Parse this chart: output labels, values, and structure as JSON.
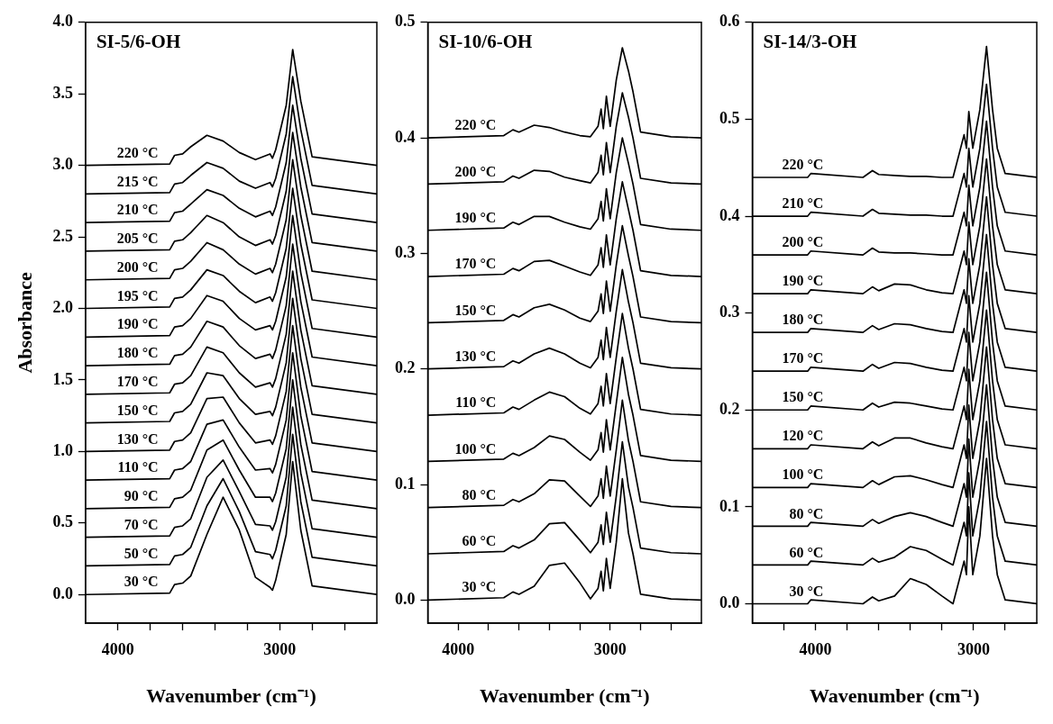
{
  "chart_data": [
    {
      "type": "line",
      "title": "SI-5/6-OH",
      "xlabel": "Wavenumber (cm⁻¹)",
      "ylabel": "Absorbance",
      "marker": "none",
      "line_style": "solid",
      "x": [
        4200,
        3680,
        3650,
        3600,
        3550,
        3450,
        3350,
        3250,
        3150,
        3060,
        3045,
        3025,
        2960,
        2920,
        2870,
        2800,
        2400
      ],
      "xlim": [
        4200,
        2400
      ],
      "xticks": [
        {
          "value": 4000,
          "label": "4000"
        },
        {
          "value": 3800,
          "label": null
        },
        {
          "value": 3600,
          "label": null
        },
        {
          "value": 3400,
          "label": null
        },
        {
          "value": 3200,
          "label": null
        },
        {
          "value": 3000,
          "label": "3000"
        },
        {
          "value": 2800,
          "label": null
        },
        {
          "value": 2600,
          "label": null
        }
      ],
      "ylim": [
        -0.2,
        4.0
      ],
      "yticks": [
        {
          "value": 0,
          "label": "0.0"
        },
        0.5,
        {
          "value": 1,
          "label": "1.0"
        },
        1.5,
        {
          "value": 2,
          "label": "2.0"
        },
        2.5,
        {
          "value": 3,
          "label": "3.0"
        },
        3.5,
        {
          "value": 4,
          "label": "4.0"
        }
      ],
      "series": [
        {
          "name": "30 °C",
          "color": "#000000",
          "values": [
            0,
            0.01,
            0.07,
            0.08,
            0.13,
            0.42,
            0.68,
            0.45,
            0.12,
            0.05,
            0.03,
            0.1,
            0.42,
            0.93,
            0.45,
            0.06,
            0
          ]
        },
        {
          "name": "50 °C",
          "color": "#000000",
          "values": [
            0.2,
            0.21,
            0.27,
            0.28,
            0.33,
            0.62,
            0.81,
            0.58,
            0.3,
            0.28,
            0.25,
            0.31,
            0.62,
            1.12,
            0.65,
            0.26,
            0.2
          ]
        },
        {
          "name": "70 °C",
          "color": "#000000",
          "values": [
            0.4,
            0.41,
            0.47,
            0.48,
            0.53,
            0.82,
            0.94,
            0.72,
            0.49,
            0.48,
            0.45,
            0.51,
            0.82,
            1.31,
            0.85,
            0.46,
            0.4
          ]
        },
        {
          "name": "90 °C",
          "color": "#000000",
          "values": [
            0.6,
            0.61,
            0.67,
            0.68,
            0.73,
            1.01,
            1.08,
            0.87,
            0.68,
            0.68,
            0.65,
            0.71,
            1.02,
            1.5,
            1.05,
            0.66,
            0.6
          ]
        },
        {
          "name": "110 °C",
          "color": "#000000",
          "values": [
            0.8,
            0.81,
            0.87,
            0.88,
            0.93,
            1.19,
            1.22,
            1.03,
            0.87,
            0.88,
            0.85,
            0.91,
            1.22,
            1.69,
            1.25,
            0.86,
            0.8
          ]
        },
        {
          "name": "130 °C",
          "color": "#000000",
          "values": [
            1,
            1.01,
            1.07,
            1.08,
            1.13,
            1.37,
            1.38,
            1.2,
            1.06,
            1.08,
            1.05,
            1.11,
            1.42,
            1.88,
            1.45,
            1.06,
            1
          ]
        },
        {
          "name": "150 °C",
          "color": "#000000",
          "values": [
            1.2,
            1.21,
            1.27,
            1.28,
            1.33,
            1.55,
            1.53,
            1.37,
            1.26,
            1.28,
            1.25,
            1.31,
            1.62,
            2.07,
            1.65,
            1.26,
            1.2
          ]
        },
        {
          "name": "170 °C",
          "color": "#000000",
          "values": [
            1.4,
            1.41,
            1.47,
            1.48,
            1.53,
            1.73,
            1.69,
            1.55,
            1.45,
            1.48,
            1.45,
            1.51,
            1.82,
            2.26,
            1.85,
            1.46,
            1.4
          ]
        },
        {
          "name": "180 °C",
          "color": "#000000",
          "values": [
            1.6,
            1.61,
            1.67,
            1.68,
            1.73,
            1.91,
            1.87,
            1.74,
            1.65,
            1.68,
            1.65,
            1.71,
            2.02,
            2.45,
            2.05,
            1.66,
            1.6
          ]
        },
        {
          "name": "190 °C",
          "color": "#000000",
          "values": [
            1.8,
            1.81,
            1.87,
            1.88,
            1.93,
            2.09,
            2.05,
            1.93,
            1.85,
            1.88,
            1.85,
            1.91,
            2.22,
            2.65,
            2.25,
            1.86,
            1.8
          ]
        },
        {
          "name": "195 °C",
          "color": "#000000",
          "values": [
            2,
            2.01,
            2.07,
            2.08,
            2.13,
            2.27,
            2.23,
            2.12,
            2.04,
            2.08,
            2.05,
            2.11,
            2.42,
            2.84,
            2.45,
            2.06,
            2
          ]
        },
        {
          "name": "200 °C",
          "color": "#000000",
          "values": [
            2.2,
            2.21,
            2.27,
            2.28,
            2.33,
            2.46,
            2.41,
            2.31,
            2.24,
            2.28,
            2.25,
            2.31,
            2.62,
            3.04,
            2.65,
            2.26,
            2.2
          ]
        },
        {
          "name": "205 °C",
          "color": "#000000",
          "values": [
            2.4,
            2.41,
            2.47,
            2.48,
            2.53,
            2.65,
            2.6,
            2.5,
            2.44,
            2.48,
            2.45,
            2.51,
            2.82,
            3.23,
            2.85,
            2.46,
            2.4
          ]
        },
        {
          "name": "210 °C",
          "color": "#000000",
          "values": [
            2.6,
            2.61,
            2.67,
            2.68,
            2.73,
            2.83,
            2.79,
            2.7,
            2.64,
            2.68,
            2.65,
            2.71,
            3.02,
            3.42,
            3.05,
            2.66,
            2.6
          ]
        },
        {
          "name": "215 °C",
          "color": "#000000",
          "values": [
            2.8,
            2.81,
            2.87,
            2.88,
            2.93,
            3.02,
            2.98,
            2.89,
            2.84,
            2.88,
            2.85,
            2.91,
            3.22,
            3.62,
            3.25,
            2.86,
            2.8
          ]
        },
        {
          "name": "220 °C",
          "color": "#000000",
          "values": [
            3,
            3.01,
            3.07,
            3.08,
            3.13,
            3.21,
            3.17,
            3.09,
            3.04,
            3.08,
            3.05,
            3.11,
            3.42,
            3.81,
            3.45,
            3.06,
            3
          ]
        }
      ]
    },
    {
      "type": "line",
      "title": "SI-10/6-OH",
      "xlabel": "Wavenumber (cm⁻¹)",
      "marker": "none",
      "line_style": "solid",
      "x": [
        4200,
        3700,
        3640,
        3600,
        3500,
        3400,
        3300,
        3200,
        3130,
        3080,
        3060,
        3045,
        3025,
        3000,
        2960,
        2920,
        2880,
        2850,
        2800,
        2600,
        2400
      ],
      "xlim": [
        4200,
        2400
      ],
      "xticks": [
        {
          "value": 4000,
          "label": "4000"
        },
        {
          "value": 3800,
          "label": null
        },
        {
          "value": 3600,
          "label": null
        },
        {
          "value": 3400,
          "label": null
        },
        {
          "value": 3200,
          "label": null
        },
        {
          "value": 3000,
          "label": "3000"
        },
        {
          "value": 2800,
          "label": null
        },
        {
          "value": 2600,
          "label": null
        }
      ],
      "ylim": [
        -0.02,
        0.5
      ],
      "yticks": [
        {
          "value": 0,
          "label": "0.0"
        },
        0.1,
        0.2,
        0.3,
        0.4,
        0.5
      ],
      "series": [
        {
          "name": "30 °C",
          "color": "#000000",
          "values": [
            0,
            0.002,
            0.007,
            0.005,
            0.012,
            0.03,
            0.032,
            0.015,
            0.001,
            0.01,
            0.025,
            0.008,
            0.036,
            0.01,
            0.05,
            0.105,
            0.058,
            0.04,
            0.005,
            0.001,
            0
          ]
        },
        {
          "name": "60 °C",
          "color": "#000000",
          "values": [
            0.04,
            0.042,
            0.047,
            0.045,
            0.052,
            0.066,
            0.067,
            0.052,
            0.041,
            0.05,
            0.065,
            0.048,
            0.076,
            0.05,
            0.09,
            0.137,
            0.098,
            0.08,
            0.045,
            0.041,
            0.04
          ]
        },
        {
          "name": "80 °C",
          "color": "#000000",
          "values": [
            0.08,
            0.082,
            0.087,
            0.085,
            0.092,
            0.104,
            0.103,
            0.09,
            0.081,
            0.09,
            0.105,
            0.088,
            0.116,
            0.09,
            0.13,
            0.173,
            0.138,
            0.12,
            0.085,
            0.081,
            0.08
          ]
        },
        {
          "name": "100 °C",
          "color": "#000000",
          "values": [
            0.12,
            0.122,
            0.127,
            0.125,
            0.132,
            0.142,
            0.139,
            0.128,
            0.121,
            0.13,
            0.145,
            0.128,
            0.156,
            0.13,
            0.17,
            0.21,
            0.178,
            0.16,
            0.125,
            0.121,
            0.12
          ]
        },
        {
          "name": "110 °C",
          "color": "#000000",
          "values": [
            0.16,
            0.162,
            0.167,
            0.165,
            0.173,
            0.18,
            0.176,
            0.166,
            0.161,
            0.17,
            0.185,
            0.168,
            0.196,
            0.17,
            0.21,
            0.248,
            0.218,
            0.2,
            0.165,
            0.161,
            0.16
          ]
        },
        {
          "name": "130 °C",
          "color": "#000000",
          "values": [
            0.2,
            0.202,
            0.207,
            0.205,
            0.213,
            0.218,
            0.213,
            0.205,
            0.201,
            0.21,
            0.225,
            0.208,
            0.236,
            0.21,
            0.25,
            0.286,
            0.258,
            0.24,
            0.205,
            0.201,
            0.2
          ]
        },
        {
          "name": "150 °C",
          "color": "#000000",
          "values": [
            0.24,
            0.242,
            0.247,
            0.245,
            0.253,
            0.256,
            0.251,
            0.244,
            0.241,
            0.25,
            0.265,
            0.248,
            0.276,
            0.25,
            0.29,
            0.324,
            0.298,
            0.28,
            0.245,
            0.241,
            0.24
          ]
        },
        {
          "name": "170 °C",
          "color": "#000000",
          "values": [
            0.28,
            0.282,
            0.287,
            0.285,
            0.293,
            0.294,
            0.289,
            0.284,
            0.281,
            0.29,
            0.305,
            0.288,
            0.316,
            0.29,
            0.33,
            0.362,
            0.338,
            0.32,
            0.285,
            0.281,
            0.28
          ]
        },
        {
          "name": "190 °C",
          "color": "#000000",
          "values": [
            0.32,
            0.322,
            0.327,
            0.325,
            0.332,
            0.332,
            0.327,
            0.323,
            0.321,
            0.33,
            0.345,
            0.328,
            0.356,
            0.33,
            0.37,
            0.4,
            0.378,
            0.36,
            0.325,
            0.321,
            0.32
          ]
        },
        {
          "name": "200 °C",
          "color": "#000000",
          "values": [
            0.36,
            0.362,
            0.367,
            0.365,
            0.372,
            0.371,
            0.366,
            0.363,
            0.361,
            0.37,
            0.385,
            0.368,
            0.396,
            0.37,
            0.41,
            0.439,
            0.418,
            0.4,
            0.365,
            0.361,
            0.36
          ]
        },
        {
          "name": "220 °C",
          "color": "#000000",
          "values": [
            0.4,
            0.402,
            0.407,
            0.405,
            0.411,
            0.409,
            0.405,
            0.402,
            0.401,
            0.41,
            0.425,
            0.408,
            0.436,
            0.41,
            0.45,
            0.478,
            0.458,
            0.44,
            0.405,
            0.401,
            0.4
          ]
        }
      ]
    },
    {
      "type": "line",
      "title": "SI-14/3-OH",
      "xlabel": "Wavenumber (cm⁻¹)",
      "marker": "none",
      "line_style": "solid",
      "x": [
        4400,
        4050,
        4030,
        3700,
        3640,
        3600,
        3500,
        3400,
        3300,
        3200,
        3130,
        3090,
        3060,
        3045,
        3030,
        3005,
        2960,
        2918,
        2880,
        2850,
        2800,
        2600
      ],
      "xlim": [
        4400,
        2600
      ],
      "xticks": [
        {
          "value": 4200,
          "label": null
        },
        {
          "value": 4000,
          "label": "4000"
        },
        {
          "value": 3800,
          "label": null
        },
        {
          "value": 3600,
          "label": null
        },
        {
          "value": 3400,
          "label": null
        },
        {
          "value": 3200,
          "label": null
        },
        {
          "value": 3000,
          "label": "3000"
        },
        {
          "value": 2800,
          "label": null
        }
      ],
      "ylim": [
        -0.02,
        0.6
      ],
      "yticks": [
        {
          "value": 0,
          "label": "0.0"
        },
        0.1,
        0.2,
        0.3,
        0.4,
        0.5,
        0.6
      ],
      "series": [
        {
          "name": "30 °C",
          "color": "#000000",
          "values": [
            0,
            0,
            0.004,
            0,
            0.007,
            0.003,
            0.008,
            0.026,
            0.02,
            0.008,
            0,
            0.025,
            0.044,
            0.03,
            0.1,
            0.03,
            0.07,
            0.15,
            0.07,
            0.03,
            0.004,
            0
          ]
        },
        {
          "name": "60 °C",
          "color": "#000000",
          "values": [
            0.04,
            0.04,
            0.044,
            0.04,
            0.047,
            0.043,
            0.048,
            0.059,
            0.055,
            0.046,
            0.04,
            0.065,
            0.084,
            0.07,
            0.135,
            0.07,
            0.11,
            0.188,
            0.11,
            0.07,
            0.044,
            0.04
          ]
        },
        {
          "name": "80 °C",
          "color": "#000000",
          "values": [
            0.08,
            0.08,
            0.084,
            0.08,
            0.087,
            0.083,
            0.09,
            0.094,
            0.09,
            0.084,
            0.08,
            0.105,
            0.124,
            0.11,
            0.17,
            0.11,
            0.15,
            0.226,
            0.15,
            0.11,
            0.084,
            0.08
          ]
        },
        {
          "name": "100 °C",
          "color": "#000000",
          "values": [
            0.12,
            0.12,
            0.124,
            0.12,
            0.127,
            0.123,
            0.131,
            0.132,
            0.128,
            0.123,
            0.12,
            0.145,
            0.164,
            0.15,
            0.205,
            0.15,
            0.19,
            0.265,
            0.19,
            0.15,
            0.124,
            0.12
          ]
        },
        {
          "name": "120 °C",
          "color": "#000000",
          "values": [
            0.16,
            0.16,
            0.164,
            0.16,
            0.167,
            0.163,
            0.171,
            0.171,
            0.166,
            0.162,
            0.16,
            0.185,
            0.204,
            0.19,
            0.242,
            0.19,
            0.23,
            0.303,
            0.23,
            0.19,
            0.164,
            0.16
          ]
        },
        {
          "name": "150 °C",
          "color": "#000000",
          "values": [
            0.2,
            0.2,
            0.204,
            0.2,
            0.207,
            0.203,
            0.208,
            0.207,
            0.204,
            0.201,
            0.2,
            0.225,
            0.244,
            0.23,
            0.28,
            0.23,
            0.27,
            0.342,
            0.27,
            0.23,
            0.204,
            0.2
          ]
        },
        {
          "name": "170 °C",
          "color": "#000000",
          "values": [
            0.24,
            0.24,
            0.244,
            0.24,
            0.247,
            0.243,
            0.249,
            0.248,
            0.244,
            0.241,
            0.24,
            0.265,
            0.284,
            0.27,
            0.318,
            0.27,
            0.31,
            0.381,
            0.31,
            0.27,
            0.244,
            0.24
          ]
        },
        {
          "name": "180 °C",
          "color": "#000000",
          "values": [
            0.28,
            0.28,
            0.284,
            0.28,
            0.287,
            0.283,
            0.289,
            0.288,
            0.284,
            0.281,
            0.28,
            0.305,
            0.324,
            0.31,
            0.356,
            0.31,
            0.35,
            0.42,
            0.35,
            0.31,
            0.284,
            0.28
          ]
        },
        {
          "name": "190 °C",
          "color": "#000000",
          "values": [
            0.32,
            0.32,
            0.324,
            0.32,
            0.327,
            0.323,
            0.33,
            0.329,
            0.324,
            0.321,
            0.32,
            0.345,
            0.364,
            0.35,
            0.394,
            0.35,
            0.39,
            0.459,
            0.39,
            0.35,
            0.324,
            0.32
          ]
        },
        {
          "name": "200 °C",
          "color": "#000000",
          "values": [
            0.36,
            0.36,
            0.364,
            0.36,
            0.367,
            0.363,
            0.362,
            0.362,
            0.361,
            0.36,
            0.36,
            0.385,
            0.404,
            0.39,
            0.432,
            0.39,
            0.43,
            0.498,
            0.43,
            0.39,
            0.364,
            0.36
          ]
        },
        {
          "name": "210 °C",
          "color": "#000000",
          "values": [
            0.4,
            0.4,
            0.404,
            0.4,
            0.407,
            0.403,
            0.402,
            0.401,
            0.401,
            0.4,
            0.4,
            0.425,
            0.444,
            0.43,
            0.47,
            0.43,
            0.47,
            0.536,
            0.47,
            0.43,
            0.404,
            0.4
          ]
        },
        {
          "name": "220 °C",
          "color": "#000000",
          "values": [
            0.44,
            0.44,
            0.444,
            0.44,
            0.447,
            0.443,
            0.442,
            0.441,
            0.441,
            0.44,
            0.44,
            0.465,
            0.484,
            0.47,
            0.508,
            0.47,
            0.51,
            0.575,
            0.51,
            0.47,
            0.444,
            0.44
          ]
        }
      ]
    }
  ]
}
